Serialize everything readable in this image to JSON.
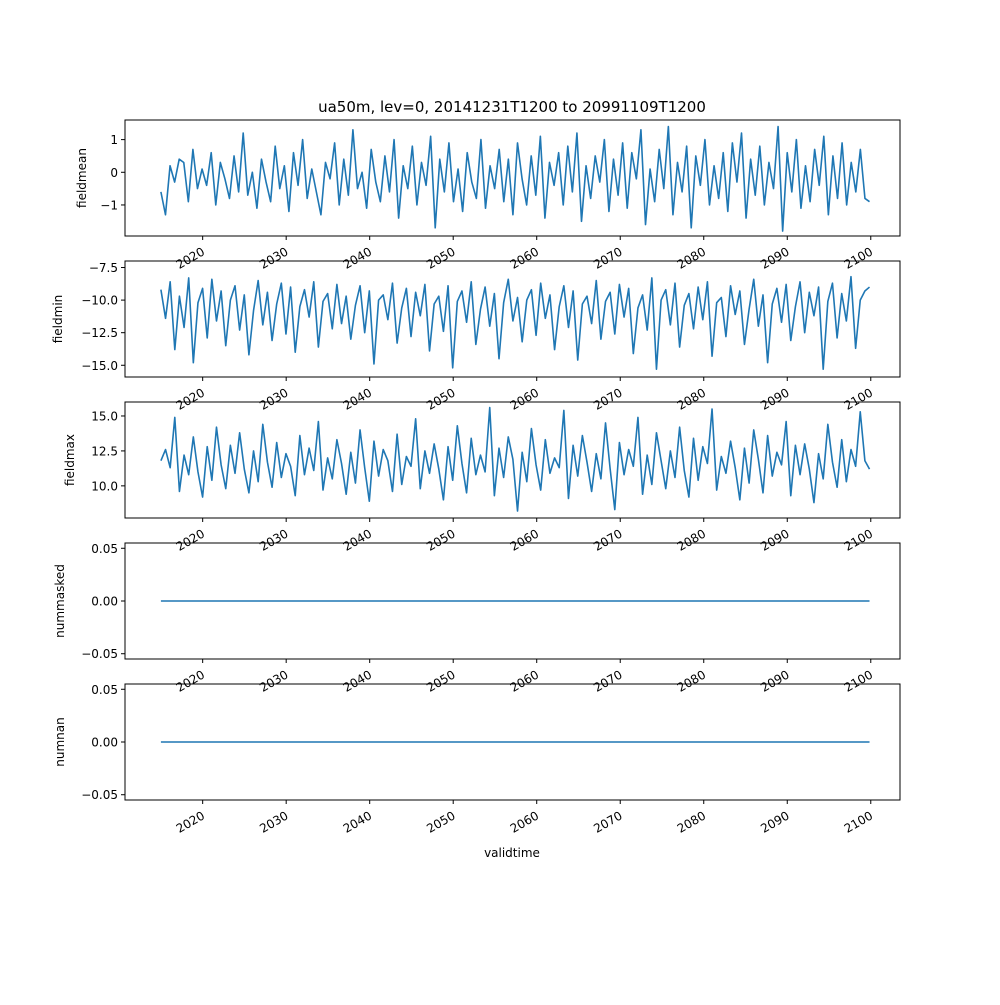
{
  "title": "ua50m, lev=0, 20141231T1200 to 20991109T1200",
  "xlabel": "validtime",
  "colors": {
    "line": "#1f77b4",
    "axes": "#000000",
    "background": "#ffffff"
  },
  "x_ticks": [
    "2020",
    "2030",
    "2040",
    "2050",
    "2060",
    "2070",
    "2080",
    "2090",
    "2100"
  ],
  "x_range": [
    "2014-12-31",
    "2099-11-09"
  ],
  "x_axis_limits_years": [
    2010.7,
    2103.5
  ],
  "chart_data": [
    {
      "type": "line",
      "ylabel": "fieldmean",
      "ylim": [
        -1.95,
        1.6
      ],
      "yticks": [
        1,
        0,
        -1
      ],
      "ytick_labels": [
        "1",
        "0",
        "−1"
      ],
      "series": [
        {
          "x_start": 2015.0,
          "x_end": 2099.85,
          "values": [
            -0.6,
            -1.3,
            0.2,
            -0.3,
            0.4,
            0.3,
            -0.9,
            0.7,
            -0.5,
            0.1,
            -0.4,
            0.6,
            -1.0,
            0.3,
            -0.2,
            -0.8,
            0.5,
            -0.6,
            1.2,
            -0.7,
            0.0,
            -1.1,
            0.4,
            -0.3,
            -0.9,
            0.8,
            -0.5,
            0.2,
            -1.2,
            0.6,
            -0.4,
            1.0,
            -0.8,
            0.1,
            -0.6,
            -1.3,
            0.3,
            -0.2,
            0.9,
            -1.0,
            0.4,
            -0.7,
            1.3,
            -0.5,
            0.0,
            -1.1,
            0.7,
            -0.3,
            -0.9,
            0.5,
            -0.6,
            1.0,
            -1.4,
            0.2,
            -0.5,
            0.8,
            -1.0,
            0.3,
            -0.4,
            1.1,
            -1.7,
            0.4,
            -0.6,
            0.9,
            -0.9,
            0.1,
            -1.2,
            0.6,
            -0.3,
            -0.8,
            1.0,
            -1.1,
            0.2,
            -0.5,
            0.7,
            -0.9,
            0.4,
            -1.3,
            0.9,
            -0.2,
            -1.0,
            0.5,
            -0.7,
            1.1,
            -1.4,
            0.3,
            -0.4,
            0.6,
            -1.0,
            0.8,
            -0.6,
            1.2,
            -1.5,
            0.2,
            -0.8,
            0.5,
            -0.3,
            1.0,
            -1.2,
            0.4,
            -0.7,
            0.9,
            -1.1,
            0.6,
            -0.2,
            1.3,
            -1.6,
            0.1,
            -0.9,
            0.7,
            -0.5,
            1.4,
            -1.3,
            0.3,
            -0.6,
            0.8,
            -1.7,
            0.5,
            -0.4,
            1.0,
            -1.0,
            0.2,
            -0.8,
            0.6,
            -1.2,
            0.9,
            -0.3,
            1.2,
            -1.4,
            0.4,
            -0.7,
            0.8,
            -1.0,
            0.3,
            -0.5,
            1.4,
            -1.8,
            0.6,
            -0.6,
            1.0,
            -1.1,
            0.2,
            -0.9,
            0.7,
            -0.4,
            1.1,
            -1.3,
            0.5,
            -0.8,
            0.9,
            -1.0,
            0.3,
            -0.6,
            0.7,
            -0.8,
            -0.9
          ]
        }
      ]
    },
    {
      "type": "line",
      "ylabel": "fieldmin",
      "ylim": [
        -15.9,
        -7.0
      ],
      "yticks": [
        -7.5,
        -10.0,
        -12.5,
        -15.0
      ],
      "ytick_labels": [
        "−7.5",
        "−10.0",
        "−12.5",
        "−15.0"
      ],
      "series": [
        {
          "x_start": 2015.0,
          "x_end": 2099.85,
          "values": [
            -9.2,
            -11.4,
            -8.6,
            -13.8,
            -9.7,
            -12.1,
            -8.3,
            -14.8,
            -10.2,
            -9.1,
            -12.9,
            -8.4,
            -11.6,
            -9.3,
            -13.5,
            -10.0,
            -8.9,
            -12.3,
            -9.6,
            -14.2,
            -10.8,
            -8.5,
            -11.9,
            -9.4,
            -13.1,
            -10.3,
            -8.7,
            -12.6,
            -9.0,
            -14.0,
            -10.5,
            -9.2,
            -11.3,
            -8.6,
            -13.6,
            -10.1,
            -9.5,
            -12.2,
            -8.8,
            -11.8,
            -9.7,
            -13.0,
            -10.4,
            -8.9,
            -12.5,
            -9.3,
            -14.9,
            -10.0,
            -9.6,
            -11.5,
            -8.7,
            -13.3,
            -10.6,
            -9.1,
            -12.8,
            -9.4,
            -11.2,
            -8.8,
            -13.9,
            -10.3,
            -9.7,
            -12.4,
            -8.9,
            -15.2,
            -10.1,
            -9.3,
            -11.7,
            -8.6,
            -13.4,
            -10.7,
            -9.0,
            -12.0,
            -9.5,
            -14.5,
            -10.2,
            -8.4,
            -11.6,
            -9.8,
            -13.2,
            -10.0,
            -9.2,
            -12.7,
            -8.7,
            -11.4,
            -9.6,
            -13.8,
            -10.5,
            -8.9,
            -12.1,
            -9.3,
            -14.6,
            -10.3,
            -9.7,
            -11.8,
            -8.5,
            -13.0,
            -10.1,
            -9.4,
            -12.6,
            -8.8,
            -11.3,
            -9.1,
            -14.1,
            -10.6,
            -9.6,
            -12.3,
            -8.3,
            -15.3,
            -10.0,
            -9.2,
            -11.9,
            -8.7,
            -13.6,
            -10.4,
            -9.5,
            -12.2,
            -9.0,
            -11.5,
            -8.6,
            -14.3,
            -10.2,
            -9.8,
            -12.8,
            -8.9,
            -11.1,
            -9.3,
            -13.4,
            -10.7,
            -8.4,
            -12.0,
            -9.6,
            -14.8,
            -10.3,
            -9.1,
            -11.7,
            -8.8,
            -13.1,
            -10.5,
            -8.6,
            -12.5,
            -9.4,
            -11.2,
            -9.0,
            -15.3,
            -10.1,
            -8.7,
            -12.9,
            -9.5,
            -11.6,
            -8.2,
            -13.7,
            -10.0,
            -9.3,
            -9.0
          ]
        }
      ]
    },
    {
      "type": "line",
      "ylabel": "fieldmax",
      "ylim": [
        7.7,
        16.0
      ],
      "yticks": [
        15.0,
        12.5,
        10.0
      ],
      "ytick_labels": [
        "15.0",
        "12.5",
        "10.0"
      ],
      "series": [
        {
          "x_start": 2015.0,
          "x_end": 2099.85,
          "values": [
            11.8,
            12.6,
            11.3,
            14.9,
            9.6,
            12.2,
            10.8,
            13.5,
            11.0,
            9.2,
            12.8,
            10.4,
            14.2,
            11.5,
            9.8,
            12.9,
            10.9,
            13.8,
            11.2,
            9.5,
            12.5,
            10.3,
            14.4,
            11.7,
            9.9,
            13.1,
            10.6,
            12.3,
            11.4,
            9.3,
            13.6,
            10.8,
            12.7,
            11.1,
            14.6,
            9.7,
            12.0,
            10.5,
            13.3,
            11.6,
            9.4,
            12.4,
            10.2,
            14.0,
            11.3,
            8.9,
            13.2,
            10.7,
            12.6,
            11.8,
            9.6,
            13.7,
            10.1,
            12.1,
            11.4,
            14.8,
            9.8,
            12.5,
            10.9,
            13.0,
            11.2,
            9.0,
            12.8,
            10.4,
            14.3,
            11.6,
            9.5,
            13.4,
            10.8,
            12.2,
            11.0,
            15.6,
            9.3,
            12.7,
            10.6,
            13.5,
            11.9,
            8.2,
            12.4,
            10.3,
            14.1,
            11.5,
            9.7,
            13.3,
            10.9,
            12.0,
            11.3,
            15.4,
            9.1,
            12.9,
            10.7,
            13.6,
            11.7,
            9.6,
            12.3,
            10.5,
            14.5,
            11.2,
            8.3,
            13.1,
            10.8,
            12.6,
            11.4,
            14.9,
            9.4,
            12.2,
            10.1,
            13.8,
            11.8,
            9.8,
            12.5,
            10.6,
            14.2,
            11.1,
            9.2,
            13.4,
            10.4,
            12.8,
            11.6,
            15.5,
            9.7,
            12.1,
            10.9,
            13.2,
            11.3,
            9.0,
            12.7,
            10.2,
            14.0,
            11.9,
            9.5,
            13.6,
            10.7,
            12.4,
            11.5,
            14.6,
            9.3,
            12.9,
            10.8,
            13.0,
            11.2,
            8.8,
            12.3,
            10.5,
            14.4,
            11.7,
            9.9,
            13.3,
            10.3,
            12.6,
            11.4,
            15.3,
            11.8,
            11.2
          ]
        }
      ]
    },
    {
      "type": "line",
      "ylabel": "nummasked",
      "ylim": [
        -0.055,
        0.055
      ],
      "yticks": [
        0.05,
        0.0,
        -0.05
      ],
      "ytick_labels": [
        "0.05",
        "0.00",
        "−0.05"
      ],
      "series": [
        {
          "x_start": 2015.0,
          "x_end": 2099.85,
          "values": [
            0,
            0
          ]
        }
      ]
    },
    {
      "type": "line",
      "ylabel": "numnan",
      "ylim": [
        -0.055,
        0.055
      ],
      "yticks": [
        0.05,
        0.0,
        -0.05
      ],
      "ytick_labels": [
        "0.05",
        "0.00",
        "−0.05"
      ],
      "series": [
        {
          "x_start": 2015.0,
          "x_end": 2099.85,
          "values": [
            0,
            0
          ]
        }
      ]
    }
  ]
}
